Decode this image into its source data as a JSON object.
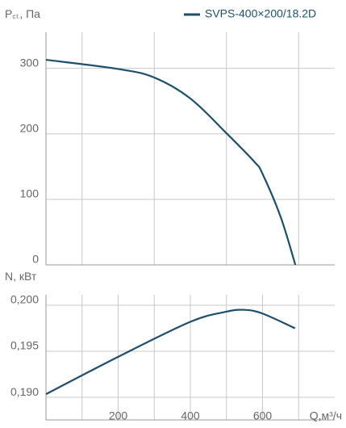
{
  "chart_data": [
    {
      "type": "line",
      "y_label": {
        "text": "P",
        "sub": "ст.",
        "rest": ", Па"
      },
      "x": [
        0,
        200,
        300,
        400,
        500,
        578,
        600,
        651,
        691
      ],
      "series": [
        {
          "name": "SVPS-400×200/18.2D",
          "color": "#1b4f6b",
          "values": [
            313,
            299,
            286,
            254,
            201,
            157,
            139,
            72,
            0
          ]
        }
      ],
      "xlim": [
        0,
        800
      ],
      "x_minor_ticks": [
        100,
        300,
        500,
        700
      ],
      "ylim": [
        0,
        355
      ],
      "yticks": [
        0,
        100,
        200,
        300
      ],
      "grid": true,
      "legend": "top-right"
    },
    {
      "type": "line",
      "y_label": {
        "text": "N, кВт"
      },
      "x_label": "Q,м³/ч",
      "x": [
        0,
        200,
        400,
        500,
        550,
        600,
        690
      ],
      "series": [
        {
          "name": "SVPS-400×200/18.2D",
          "color": "#1b4f6b",
          "values": [
            0.19035,
            0.1944,
            0.1982,
            0.1993,
            0.1995,
            0.1991,
            0.1975
          ]
        }
      ],
      "xlim": [
        0,
        800
      ],
      "xticks": [
        200,
        400,
        600
      ],
      "x_minor_ticks": [
        100,
        300,
        500,
        700
      ],
      "ylim": [
        0.18755,
        0.20114
      ],
      "yticks": [
        {
          "value": 0.19,
          "label": "0,190"
        },
        {
          "value": 0.195,
          "label": "0,195"
        },
        {
          "value": 0.2,
          "label": "0,200"
        }
      ],
      "grid": true
    }
  ]
}
